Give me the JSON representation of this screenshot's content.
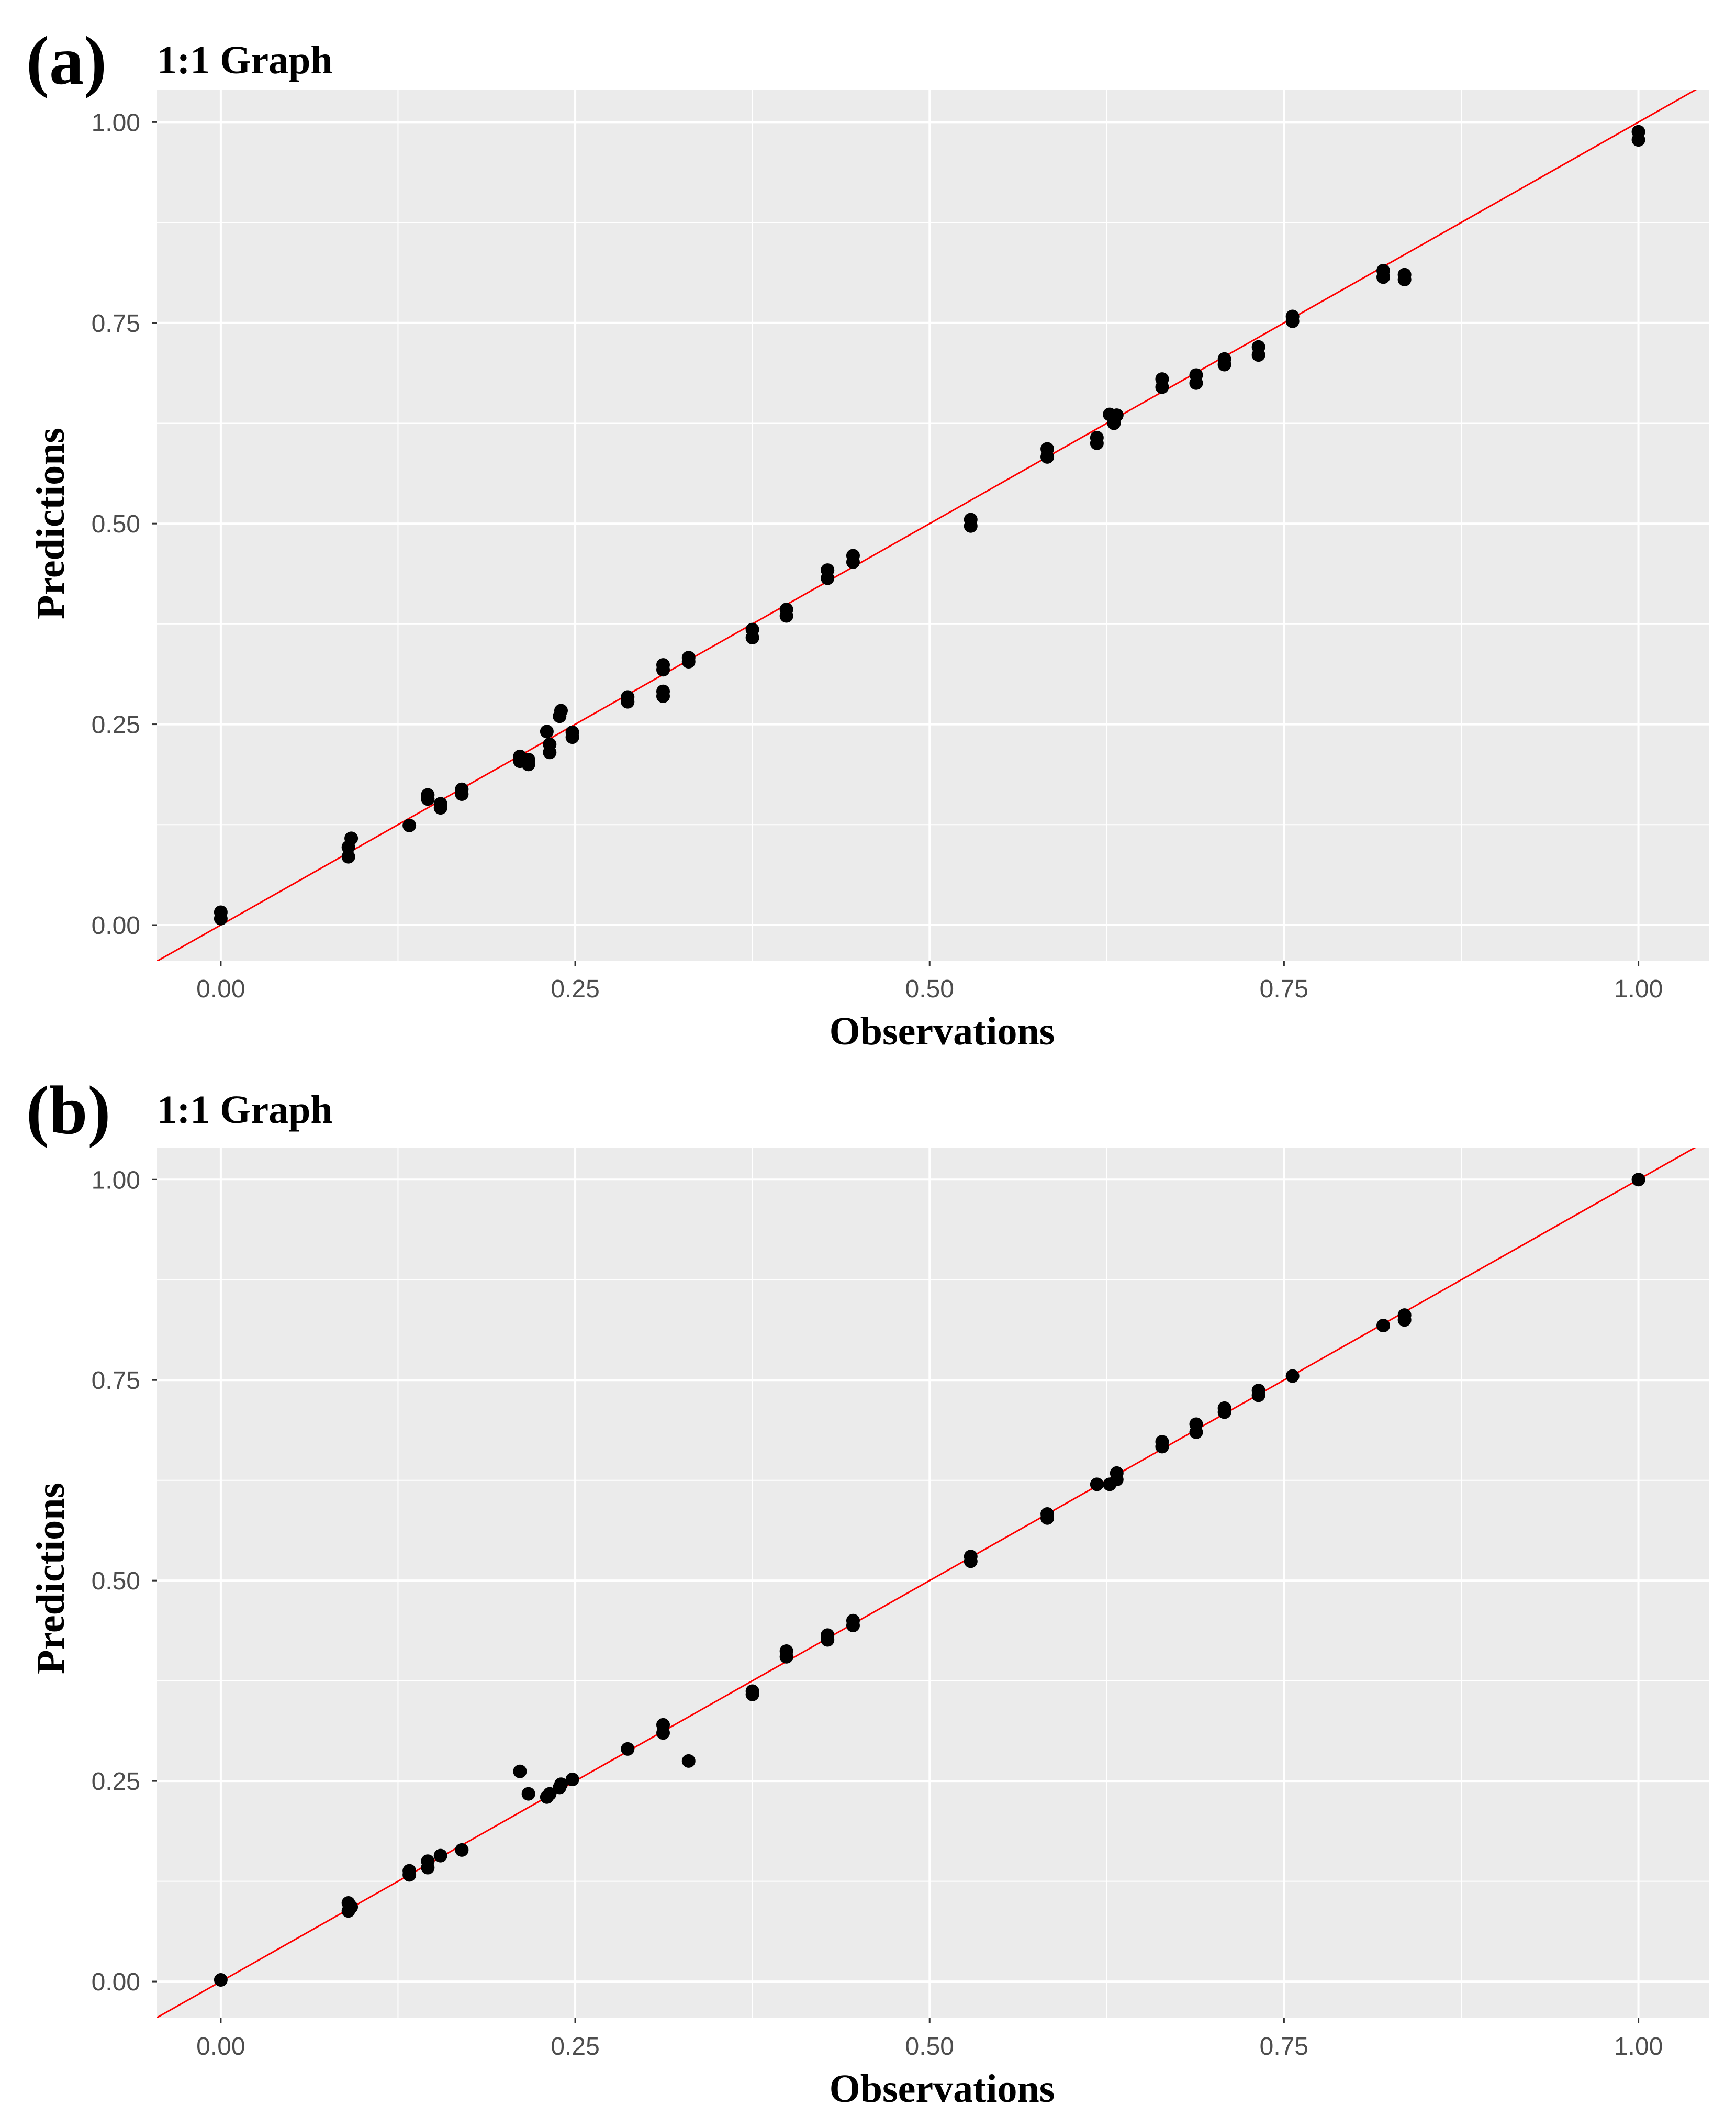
{
  "chart_data": [
    {
      "panel": "(a)",
      "type": "scatter",
      "title": "1:1 Graph",
      "xlabel": "Observations",
      "ylabel": "Predictions",
      "xlim": [
        -0.045,
        1.05
      ],
      "ylim": [
        -0.045,
        1.04
      ],
      "xticks": [
        0,
        0.25,
        0.5,
        0.75,
        1
      ],
      "xtick_labels": [
        "0.00",
        "0.25",
        "0.50",
        "0.75",
        "1.00"
      ],
      "yticks": [
        0,
        0.25,
        0.5,
        0.75,
        1
      ],
      "ytick_labels": [
        "0.00",
        "0.25",
        "0.50",
        "0.75",
        "1.00"
      ],
      "reference_line": {
        "slope": 1,
        "intercept": 0,
        "color": "#ff0000"
      },
      "point_color": "#000000",
      "series": [
        {
          "name": "points",
          "x": [
            0.0,
            0.0,
            0.09,
            0.09,
            0.092,
            0.133,
            0.146,
            0.146,
            0.155,
            0.155,
            0.17,
            0.17,
            0.211,
            0.211,
            0.217,
            0.217,
            0.23,
            0.232,
            0.232,
            0.239,
            0.24,
            0.248,
            0.248,
            0.287,
            0.287,
            0.312,
            0.312,
            0.312,
            0.312,
            0.33,
            0.33,
            0.375,
            0.375,
            0.399,
            0.399,
            0.428,
            0.428,
            0.446,
            0.446,
            0.529,
            0.529,
            0.583,
            0.583,
            0.618,
            0.618,
            0.627,
            0.63,
            0.632,
            0.664,
            0.664,
            0.688,
            0.688,
            0.708,
            0.708,
            0.732,
            0.732,
            0.756,
            0.756,
            0.82,
            0.82,
            0.835,
            0.835,
            1.0,
            1.0
          ],
          "y": [
            0.008,
            0.016,
            0.085,
            0.097,
            0.108,
            0.124,
            0.157,
            0.162,
            0.146,
            0.151,
            0.163,
            0.169,
            0.204,
            0.21,
            0.2,
            0.206,
            0.241,
            0.215,
            0.225,
            0.26,
            0.267,
            0.234,
            0.24,
            0.278,
            0.284,
            0.285,
            0.291,
            0.318,
            0.324,
            0.328,
            0.333,
            0.358,
            0.368,
            0.385,
            0.393,
            0.432,
            0.442,
            0.452,
            0.46,
            0.497,
            0.505,
            0.583,
            0.593,
            0.6,
            0.607,
            0.636,
            0.625,
            0.635,
            0.67,
            0.68,
            0.675,
            0.685,
            0.698,
            0.705,
            0.71,
            0.72,
            0.752,
            0.758,
            0.807,
            0.815,
            0.804,
            0.81,
            0.978,
            0.988
          ]
        }
      ]
    },
    {
      "panel": "(b)",
      "type": "scatter",
      "title": "1:1 Graph",
      "xlabel": "Observations",
      "ylabel": "Predictions",
      "xlim": [
        -0.045,
        1.05
      ],
      "ylim": [
        -0.045,
        1.04
      ],
      "xticks": [
        0,
        0.25,
        0.5,
        0.75,
        1
      ],
      "xtick_labels": [
        "0.00",
        "0.25",
        "0.50",
        "0.75",
        "1.00"
      ],
      "yticks": [
        0,
        0.25,
        0.5,
        0.75,
        1
      ],
      "ytick_labels": [
        "0.00",
        "0.25",
        "0.50",
        "0.75",
        "1.00"
      ],
      "reference_line": {
        "slope": 1,
        "intercept": 0,
        "color": "#ff0000"
      },
      "point_color": "#000000",
      "series": [
        {
          "name": "points",
          "x": [
            0.0,
            0.09,
            0.09,
            0.092,
            0.133,
            0.133,
            0.146,
            0.146,
            0.155,
            0.17,
            0.211,
            0.217,
            0.23,
            0.232,
            0.239,
            0.24,
            0.248,
            0.287,
            0.312,
            0.312,
            0.33,
            0.375,
            0.375,
            0.399,
            0.399,
            0.428,
            0.428,
            0.446,
            0.446,
            0.529,
            0.529,
            0.583,
            0.583,
            0.618,
            0.627,
            0.632,
            0.632,
            0.664,
            0.664,
            0.688,
            0.688,
            0.708,
            0.708,
            0.732,
            0.732,
            0.756,
            0.82,
            0.835,
            0.835,
            1.0
          ],
          "y": [
            0.002,
            0.088,
            0.098,
            0.093,
            0.133,
            0.138,
            0.142,
            0.15,
            0.157,
            0.164,
            0.262,
            0.234,
            0.23,
            0.234,
            0.242,
            0.246,
            0.252,
            0.29,
            0.31,
            0.32,
            0.275,
            0.358,
            0.362,
            0.405,
            0.412,
            0.426,
            0.432,
            0.444,
            0.45,
            0.524,
            0.53,
            0.578,
            0.583,
            0.62,
            0.62,
            0.626,
            0.634,
            0.667,
            0.673,
            0.685,
            0.695,
            0.71,
            0.715,
            0.731,
            0.737,
            0.755,
            0.818,
            0.825,
            0.831,
            1.0
          ]
        }
      ]
    }
  ]
}
